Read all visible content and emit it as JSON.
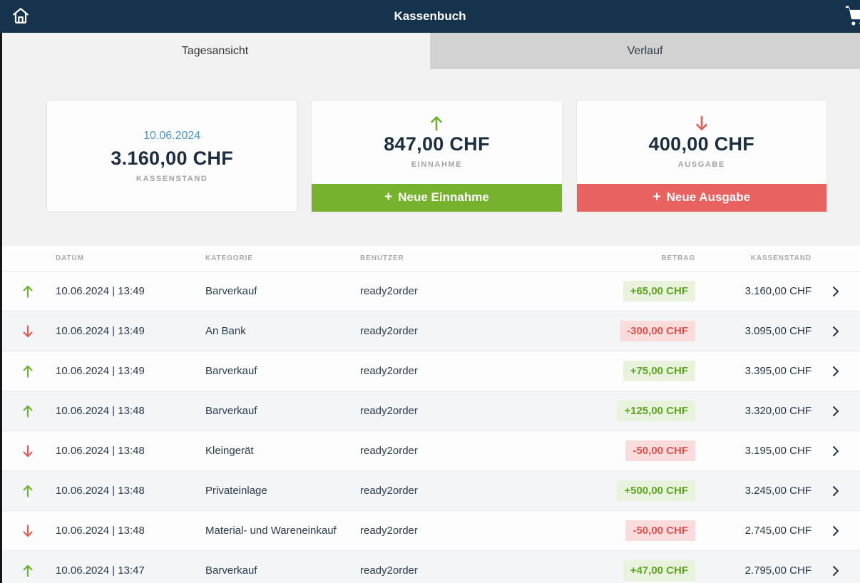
{
  "header": {
    "title": "Kassenbuch"
  },
  "tabs": [
    {
      "label": "Tagesansicht",
      "active": true
    },
    {
      "label": "Verlauf",
      "active": false
    }
  ],
  "summary": {
    "balance": {
      "date": "10.06.2024",
      "amount": "3.160,00 CHF",
      "label": "KASSENSTAND"
    },
    "income": {
      "amount": "847,00 CHF",
      "label": "EINNAHME",
      "button_plus": "+",
      "button_label": "Neue Einnahme"
    },
    "expense": {
      "amount": "400,00 CHF",
      "label": "AUSGABE",
      "button_plus": "+",
      "button_label": "Neue Ausgabe"
    }
  },
  "table": {
    "columns": [
      "DATUM",
      "KATEGORIE",
      "BENUTZER",
      "BETRAG",
      "KASSENSTAND"
    ],
    "rows": [
      {
        "direction": "up",
        "datetime": "10.06.2024 | 13:49",
        "category": "Barverkauf",
        "user": "ready2order",
        "amount": "+65,00 CHF",
        "balance": "3.160,00 CHF"
      },
      {
        "direction": "down",
        "datetime": "10.06.2024 | 13:49",
        "category": "An Bank",
        "user": "ready2order",
        "amount": "-300,00 CHF",
        "balance": "3.095,00 CHF"
      },
      {
        "direction": "up",
        "datetime": "10.06.2024 | 13:49",
        "category": "Barverkauf",
        "user": "ready2order",
        "amount": "+75,00 CHF",
        "balance": "3.395,00 CHF"
      },
      {
        "direction": "up",
        "datetime": "10.06.2024 | 13:48",
        "category": "Barverkauf",
        "user": "ready2order",
        "amount": "+125,00 CHF",
        "balance": "3.320,00 CHF"
      },
      {
        "direction": "down",
        "datetime": "10.06.2024 | 13:48",
        "category": "Kleingerät",
        "user": "ready2order",
        "amount": "-50,00 CHF",
        "balance": "3.195,00 CHF"
      },
      {
        "direction": "up",
        "datetime": "10.06.2024 | 13:48",
        "category": "Privateinlage",
        "user": "ready2order",
        "amount": "+500,00 CHF",
        "balance": "3.245,00 CHF"
      },
      {
        "direction": "down",
        "datetime": "10.06.2024 | 13:48",
        "category": "Material- und Wareneinkauf",
        "user": "ready2order",
        "amount": "-50,00 CHF",
        "balance": "2.745,00 CHF"
      },
      {
        "direction": "up",
        "datetime": "10.06.2024 | 13:47",
        "category": "Barverkauf",
        "user": "ready2order",
        "amount": "+47,00 CHF",
        "balance": "2.795,00 CHF"
      }
    ]
  },
  "colors": {
    "header_bg": "#16334d",
    "page_bg": "#f2f2f2",
    "inactive_tab_bg": "#d2d2d2",
    "accent_green": "#77b22e",
    "accent_red": "#e8625f",
    "badge_green_text": "#5da522",
    "badge_green_bg": "#e8f2dc",
    "badge_red_text": "#e4504b",
    "badge_red_bg": "#fadcdc",
    "date_blue": "#4a97ce",
    "dark_navy_text": "#1c2f40"
  }
}
